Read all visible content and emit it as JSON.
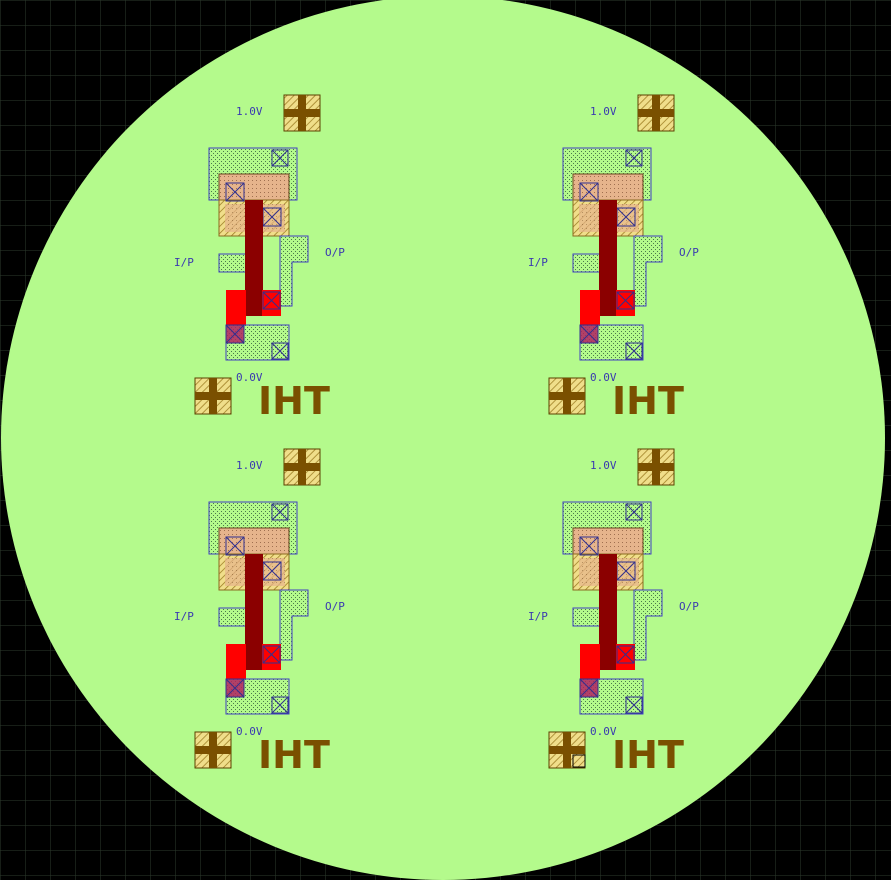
{
  "labels": {
    "vdd": "1.0V",
    "gnd": "0.0V",
    "input": "I/P",
    "output": "O/P",
    "logo": "IHT"
  },
  "cell_count": 4,
  "colors": {
    "background": "#000000",
    "grid": "#2c3a2c",
    "wafer": "#b4fa8c",
    "poly": "#8b0000",
    "diffusion_red": "#ff0000",
    "metal_outline": "#4040c0",
    "contact_pad": "#7a5000",
    "pad_fill": "#e8d27a",
    "nwell_fill": "#e8b890"
  }
}
